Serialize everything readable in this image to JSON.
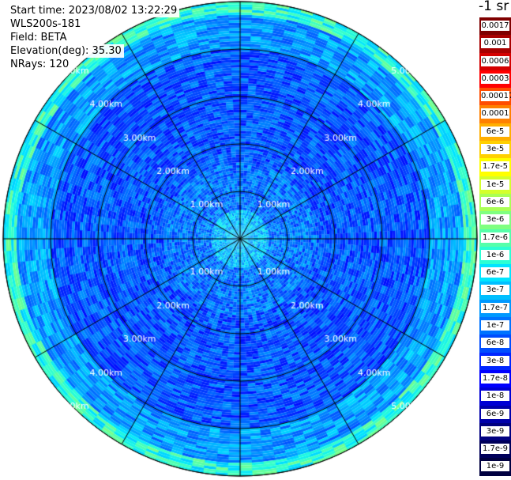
{
  "info": {
    "start_time": "Start time: 2023/08/02 13:22:29",
    "instrument": "WLS200s-181",
    "field": "Field: BETA",
    "elevation": "Elevation(deg): 35.30",
    "nrays": "NRays: 120"
  },
  "colorbar": {
    "unit": "-1 sr",
    "labels": [
      "0.0017",
      "0.001",
      "0.0006",
      "0.0003",
      "0.00017",
      "0.0001",
      "6e-5",
      "3e-5",
      "1.7e-5",
      "1e-5",
      "6e-6",
      "3e-6",
      "1.7e-6",
      "1e-6",
      "6e-7",
      "3e-7",
      "1.7e-7",
      "1e-7",
      "6e-8",
      "3e-8",
      "1.7e-8",
      "1e-8",
      "6e-9",
      "3e-9",
      "1.7e-9",
      "1e-9"
    ],
    "colors": [
      "#7f0000",
      "#a80000",
      "#d40000",
      "#ff0000",
      "#ff4d00",
      "#ff8000",
      "#ffae00",
      "#ffd000",
      "#ffff00",
      "#d4ff2b",
      "#aaff55",
      "#80ff80",
      "#55ffaa",
      "#2bffd4",
      "#00e5ff",
      "#00bfff",
      "#0099ff",
      "#0073ff",
      "#004dff",
      "#0026ff",
      "#0000ff",
      "#0000d4",
      "#0000aa",
      "#000080",
      "#00005a",
      "#000040"
    ]
  },
  "chart_data": {
    "type": "heatmap",
    "title": "",
    "projection": "polar (PPI scan)",
    "field": "BETA",
    "elevation_deg": 35.3,
    "nrays": 120,
    "range_rings_km": [
      1,
      2,
      3,
      4,
      5
    ],
    "ring_labels": [
      "1.00km",
      "2.00km",
      "3.00km",
      "4.00km",
      "5.00km"
    ],
    "azimuth_lines_deg": [
      0,
      30,
      60,
      90,
      120,
      150,
      180,
      210,
      240,
      270,
      300,
      330
    ],
    "max_range_km": 5.0,
    "color_scale": "log",
    "color_range": [
      1e-09,
      0.0017
    ],
    "value_bands": [
      {
        "range_km": [
          0.0,
          0.6
        ],
        "beta_sr": 3e-07
      },
      {
        "range_km": [
          0.6,
          1.6
        ],
        "beta_sr": 1e-07
      },
      {
        "range_km": [
          1.6,
          4.0
        ],
        "beta_sr": 6e-08
      },
      {
        "range_km": [
          4.0,
          4.7
        ],
        "beta_sr": 1.7e-07
      },
      {
        "range_km": [
          4.7,
          5.0
        ],
        "beta_sr": 1e-06
      }
    ]
  }
}
